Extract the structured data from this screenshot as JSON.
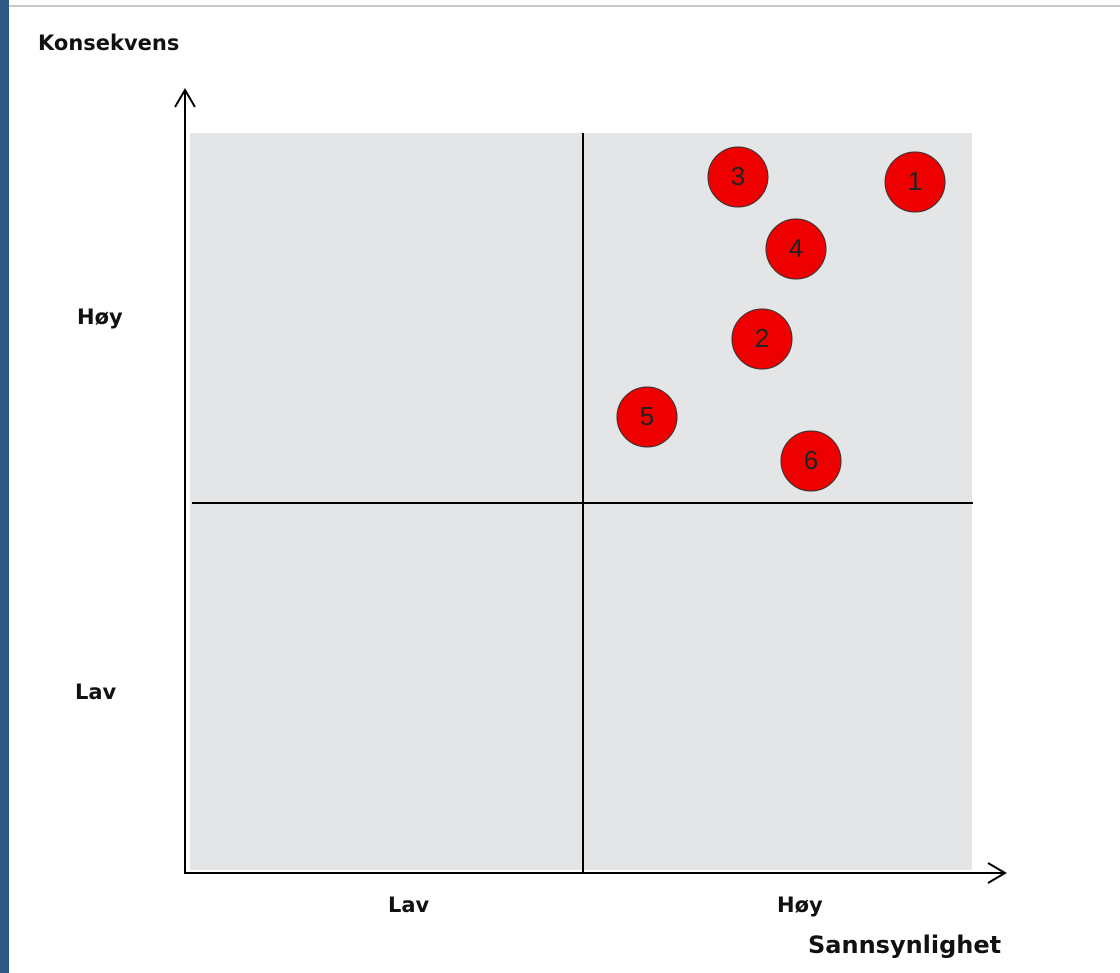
{
  "y_axis": {
    "title": "Konsekvens",
    "levels": [
      "Høy",
      "Lav"
    ]
  },
  "x_axis": {
    "title": "Sannsynlighet",
    "levels": [
      "Lav",
      "Høy"
    ]
  },
  "nodes": [
    {
      "label": "3"
    },
    {
      "label": "1"
    },
    {
      "label": "4"
    },
    {
      "label": "2"
    },
    {
      "label": "5"
    },
    {
      "label": "6"
    }
  ]
}
